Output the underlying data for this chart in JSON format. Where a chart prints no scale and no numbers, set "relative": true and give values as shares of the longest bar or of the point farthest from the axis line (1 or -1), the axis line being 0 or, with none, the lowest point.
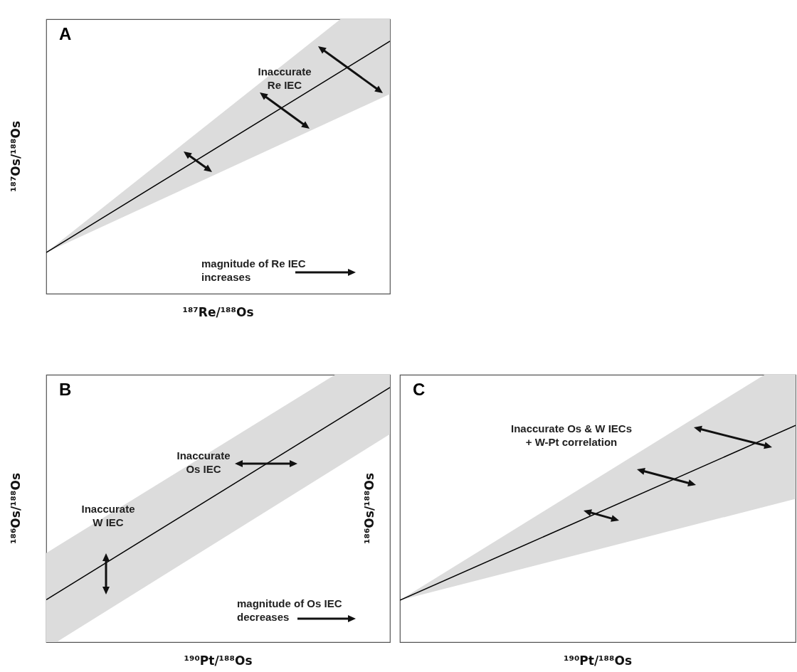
{
  "chart_data": [
    {
      "type": "line",
      "title": "A",
      "xlabel": "¹⁸⁷Re/¹⁸⁸Os",
      "ylabel": "¹⁸⁷Os/¹⁸⁸Os",
      "relative": true,
      "categories": [
        null,
        null
      ],
      "series": [
        {
          "color": "#000000",
          "values": [
            0,
            1
          ],
          "lower": [
            0,
            0.75
          ],
          "upper": [
            0,
            1.29
          ]
        }
      ],
      "annotations": [
        "Inaccurate\nRe IEC",
        "magnitude of Re IEC\nincreases"
      ]
    },
    {
      "type": "line",
      "title": "B",
      "xlabel": "¹⁹⁰Pt/¹⁸⁸Os",
      "ylabel": "¹⁸⁶Os/¹⁸⁸Os",
      "relative": true,
      "categories": [
        null,
        null
      ],
      "series": [
        {
          "color": "#000000",
          "values": [
            0,
            1
          ],
          "lower": [
            -0.23,
            0.78
          ],
          "upper": [
            0.22,
            1.22
          ]
        }
      ],
      "annotations": [
        "Inaccurate\nOs IEC",
        "Inaccurate\nW IEC",
        "magnitude of Os IEC\ndecreases"
      ]
    },
    {
      "type": "line",
      "title": "C",
      "xlabel": "¹⁹⁰Pt/¹⁸⁸Os",
      "ylabel": "¹⁸⁶Os/¹⁸⁸Os",
      "relative": true,
      "categories": [
        null,
        null
      ],
      "series": [
        {
          "color": "#000000",
          "values": [
            0,
            1
          ],
          "lower": [
            0,
            0.58
          ],
          "upper": [
            0,
            1.4
          ]
        }
      ],
      "annotations": [
        "Inaccurate Os & W IECs\n+ W-Pt correlation"
      ]
    }
  ]
}
